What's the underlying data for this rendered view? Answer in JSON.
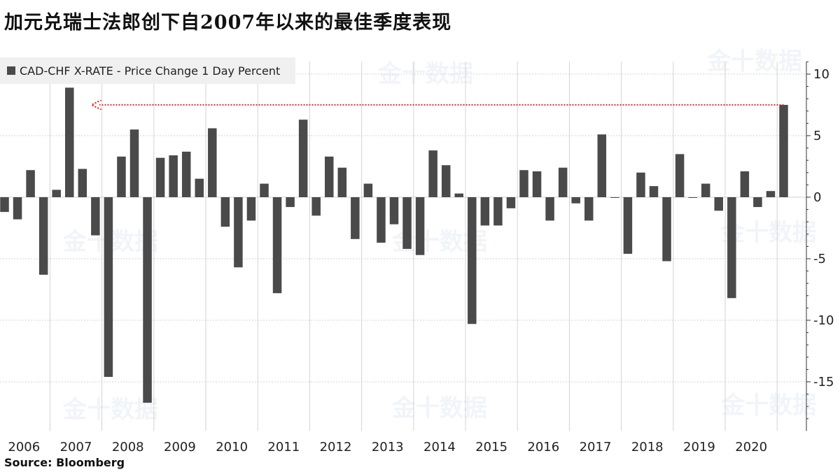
{
  "title": "加元兑瑞士法郎创下自2007年以来的最佳季度表现",
  "source": "Source:  Bloomberg",
  "watermark": "金十数据",
  "colors": {
    "bar": "#4a4a4a",
    "annotation": "#e8322d",
    "grid": "#d3d3d3"
  },
  "chart_data": {
    "type": "bar",
    "legend": {
      "label": "CAD-CHF X-RATE - Price Change 1 Day Percent",
      "position": "top-left"
    },
    "ylim": [
      -19,
      11
    ],
    "yticks": [
      10,
      5,
      0,
      -5,
      -10,
      -15
    ],
    "ytick_labels": [
      "10",
      "5",
      "0",
      "-5",
      "-10",
      "-15"
    ],
    "grid": true,
    "year_labels": [
      "2006",
      "2007",
      "2008",
      "2009",
      "2010",
      "2011",
      "2012",
      "2013",
      "2014",
      "2015",
      "2016",
      "2017",
      "2018",
      "2019",
      "2020"
    ],
    "values": [
      -1.2,
      -1.8,
      2.2,
      -6.3,
      0.6,
      8.9,
      2.3,
      -3.1,
      -14.6,
      3.3,
      5.5,
      -16.7,
      3.2,
      3.4,
      3.7,
      1.5,
      5.6,
      -2.4,
      -5.7,
      -1.9,
      1.1,
      -7.8,
      -0.8,
      6.3,
      -1.5,
      3.3,
      2.4,
      -3.4,
      1.1,
      -3.7,
      -2.2,
      -4.2,
      -4.7,
      3.8,
      2.6,
      0.3,
      -10.3,
      -2.3,
      -2.3,
      -0.9,
      2.2,
      2.1,
      -1.9,
      2.4,
      -0.5,
      -1.9,
      5.1,
      -0.05,
      -4.6,
      2.0,
      0.9,
      -5.2,
      3.5,
      -0.05,
      1.1,
      -1.1,
      -8.2,
      2.1,
      -0.8,
      0.5,
      7.5
    ],
    "annotation": {
      "type": "dotted-arrow",
      "value": 7.5
    }
  }
}
